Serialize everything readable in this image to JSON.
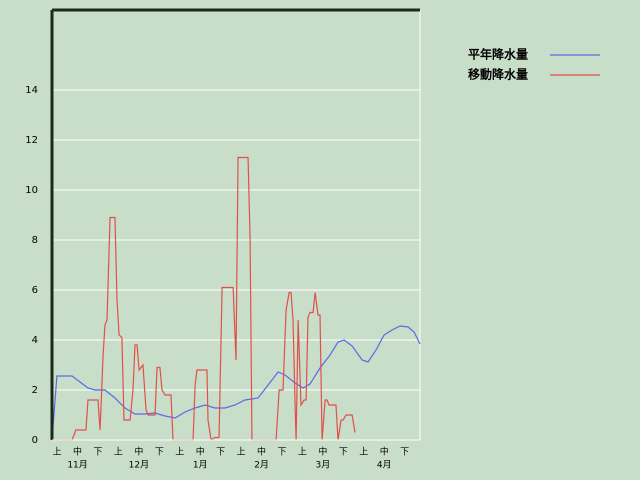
{
  "chart_data": {
    "type": "line",
    "xlim": [
      0,
      180
    ],
    "ylim": [
      0,
      17.2
    ],
    "yticks": [
      0,
      2,
      4,
      6,
      8,
      10,
      12,
      14
    ],
    "xticks": [
      {
        "value": 2.5,
        "label": "上"
      },
      {
        "value": 12.5,
        "label": "中"
      },
      {
        "value": 22.5,
        "label": "下"
      },
      {
        "value": 32.5,
        "label": "上"
      },
      {
        "value": 42.5,
        "label": "中"
      },
      {
        "value": 52.5,
        "label": "下"
      },
      {
        "value": 62.5,
        "label": "上"
      },
      {
        "value": 72.5,
        "label": "中"
      },
      {
        "value": 82.5,
        "label": "下"
      },
      {
        "value": 92.5,
        "label": "上"
      },
      {
        "value": 102.5,
        "label": "中"
      },
      {
        "value": 112.5,
        "label": "下"
      },
      {
        "value": 122.5,
        "label": "上"
      },
      {
        "value": 132.5,
        "label": "中"
      },
      {
        "value": 142.5,
        "label": "下"
      },
      {
        "value": 152.5,
        "label": "上"
      },
      {
        "value": 162.5,
        "label": "中"
      },
      {
        "value": 172.5,
        "label": "下"
      }
    ],
    "month_ticks": [
      {
        "value": 12.5,
        "label": "11月"
      },
      {
        "value": 42.5,
        "label": "12月"
      },
      {
        "value": 72.5,
        "label": "1月"
      },
      {
        "value": 102.5,
        "label": "2月"
      },
      {
        "value": 132.5,
        "label": "3月"
      },
      {
        "value": 162.5,
        "label": "4月"
      }
    ],
    "grid": true,
    "series": [
      {
        "name": "平年降水量",
        "color": "#5a6ae6",
        "x": [
          0,
          2.4,
          9.8,
          13.7,
          17.6,
          21.0,
          25.9,
          30.8,
          35.7,
          40.6,
          45.5,
          50.4,
          55.3,
          60.2,
          65.1,
          70.0,
          74.9,
          79.7,
          84.6,
          89.5,
          94.4,
          100.8,
          105.7,
          110.6,
          114.0,
          118.9,
          122.8,
          126.2,
          131.1,
          136.0,
          139.9,
          142.9,
          146.8,
          151.7,
          154.6,
          158.5,
          162.4,
          166.3,
          170.3,
          174.2,
          177.1,
          180
        ],
        "values": [
          0,
          2.56,
          2.56,
          2.32,
          2.08,
          2.0,
          2.0,
          1.68,
          1.28,
          1.04,
          1.04,
          1.08,
          0.96,
          0.88,
          1.12,
          1.28,
          1.4,
          1.28,
          1.28,
          1.4,
          1.6,
          1.68,
          2.2,
          2.72,
          2.6,
          2.28,
          2.08,
          2.24,
          2.88,
          3.4,
          3.92,
          4.0,
          3.76,
          3.2,
          3.12,
          3.6,
          4.2,
          4.4,
          4.56,
          4.52,
          4.32,
          3.84
        ]
      },
      {
        "name": "移動降水量",
        "color": "#e0504a",
        "x": [
          0,
          9.8,
          11.7,
          16.6,
          17.6,
          22.5,
          23.5,
          25.0,
          25.9,
          26.9,
          28.4,
          30.8,
          31.8,
          32.8,
          34.2,
          35.2,
          38.2,
          39.6,
          40.6,
          41.6,
          42.6,
          44.5,
          46.0,
          47.0,
          50.4,
          51.4,
          52.8,
          53.8,
          55.3,
          58.2,
          59.2,
          69.0,
          70.0,
          70.9,
          75.8,
          76.3,
          77.8,
          79.7,
          81.7,
          83.2,
          88.6,
          90.0,
          91.0,
          95.9,
          96.9,
          97.8,
          109.6,
          111.1,
          113.0,
          114.5,
          116.0,
          116.9,
          117.9,
          118.9,
          119.4,
          120.4,
          121.8,
          123.3,
          124.3,
          125.2,
          126.2,
          127.7,
          128.7,
          130.1,
          131.1,
          132.1,
          133.6,
          134.5,
          135.5,
          138.9,
          139.9,
          141.4,
          142.4,
          143.8,
          146.8,
          148.2
        ],
        "values": [
          0,
          0,
          0.4,
          0.4,
          1.6,
          1.6,
          0.4,
          3.4,
          4.6,
          4.8,
          8.9,
          8.9,
          5.6,
          4.2,
          4.1,
          0.8,
          0.8,
          2.0,
          3.8,
          3.8,
          2.8,
          3.0,
          1.2,
          1.0,
          1.0,
          2.9,
          2.9,
          2.0,
          1.8,
          1.8,
          0,
          0,
          2.2,
          2.8,
          2.8,
          0.8,
          0,
          0.1,
          0.1,
          6.1,
          6.1,
          3.2,
          11.3,
          11.3,
          8.0,
          0,
          0,
          2.0,
          2.0,
          5.2,
          5.9,
          5.9,
          4.8,
          1.4,
          0,
          4.8,
          1.4,
          1.6,
          1.6,
          4.9,
          5.1,
          5.1,
          5.9,
          5.0,
          5.0,
          0,
          1.6,
          1.6,
          1.4,
          1.4,
          0,
          0.8,
          0.8,
          1.0,
          1.0,
          0.3
        ]
      }
    ]
  }
}
